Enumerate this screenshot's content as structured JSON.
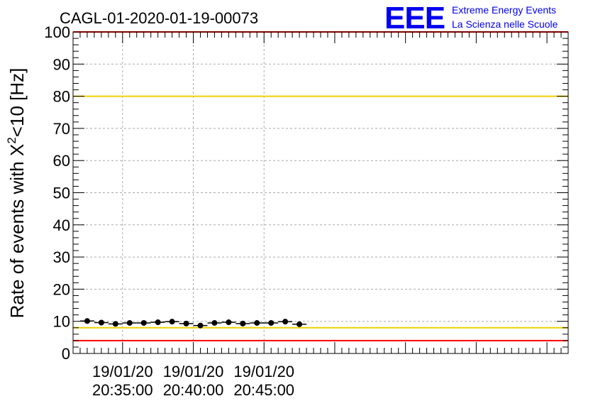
{
  "chart_data": {
    "type": "scatter",
    "title": "CAGL-01-2020-01-19-00073",
    "ylabel_main": "Rate of events with X",
    "ylabel_sup": "2",
    "ylabel_tail": "<10 [Hz]",
    "xlabel": "",
    "ylim": [
      0,
      100
    ],
    "y_ticks": [
      "0",
      "10",
      "20",
      "30",
      "40",
      "50",
      "60",
      "70",
      "80",
      "90",
      "100"
    ],
    "x_unit": "minutes after 19/01/20 20:30:00",
    "xlim": [
      1.5,
      36.5
    ],
    "x_ticks": [
      {
        "x": 5,
        "date": "19/01/20",
        "time": "20:35:00"
      },
      {
        "x": 10,
        "date": "19/01/20",
        "time": "20:40:00"
      },
      {
        "x": 15,
        "date": "19/01/20",
        "time": "20:45:00"
      }
    ],
    "grid": true,
    "reference_lines": [
      {
        "y": 80,
        "color": "#f0d000"
      },
      {
        "y": 8,
        "color": "#f0d000"
      },
      {
        "y": 4,
        "color": "#ff0000"
      },
      {
        "y": 100,
        "color": "#ff0000"
      }
    ],
    "series": [
      {
        "color": "#000000",
        "x": [
          2.5,
          3.5,
          4.5,
          5.5,
          6.5,
          7.5,
          8.5,
          9.5,
          10.5,
          11.5,
          12.5,
          13.5,
          14.5,
          15.5,
          16.5,
          17.5
        ],
        "y": [
          10.1,
          9.6,
          9.2,
          9.5,
          9.5,
          9.7,
          9.9,
          9.3,
          8.7,
          9.5,
          9.7,
          9.3,
          9.5,
          9.5,
          9.9,
          9.1
        ],
        "x_half_width": 0.5
      }
    ]
  },
  "header": {
    "logo_text": "EEE",
    "logo_color": "#0000ee",
    "line1": "Extreme Energy Events",
    "line2": "La Scienza nelle Scuole"
  }
}
